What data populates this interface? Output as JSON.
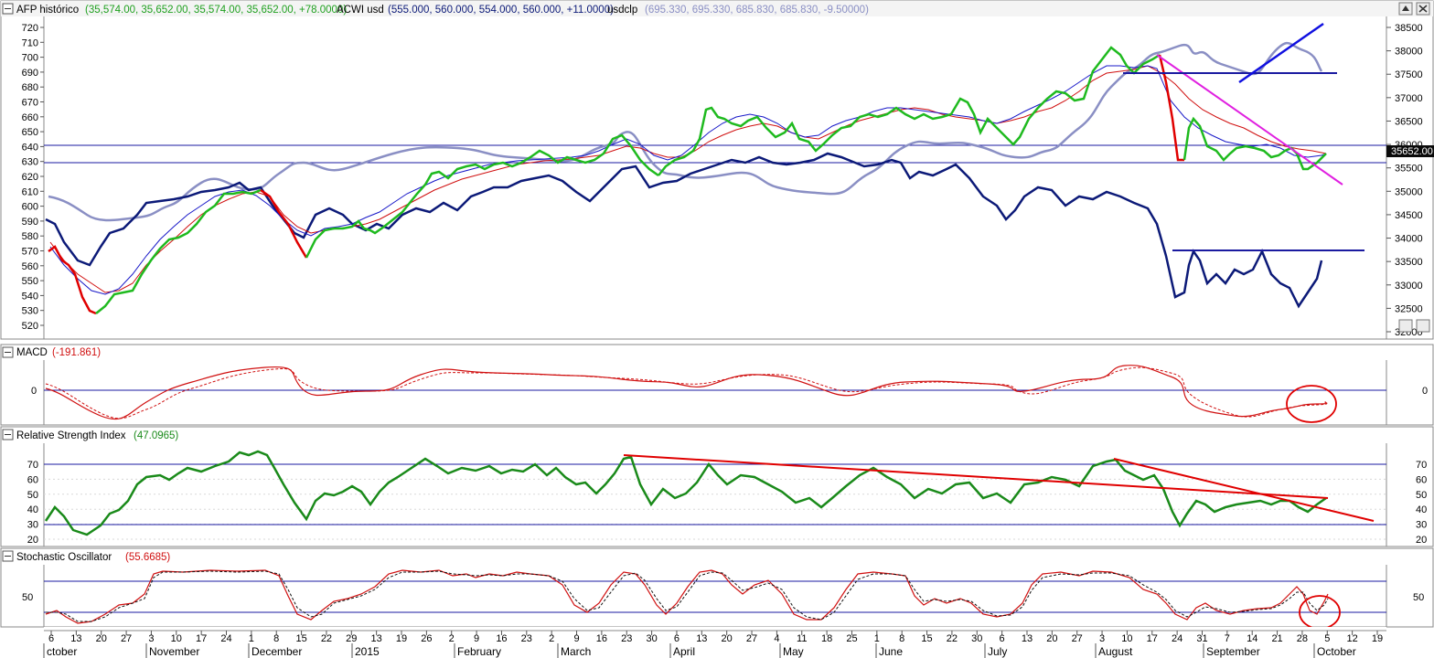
{
  "panes": {
    "price": {
      "title_main": "AFP histórico",
      "title_main_vals": "(35,574.00, 35,652.00, 35,574.00, 35,652.00, +78.0000)",
      "title_acwi": "ACWI usd",
      "title_acwi_vals": "(555.000, 560.000, 554.000, 560.000, +11.0000)",
      "title_usdclp": "usdclp",
      "title_usdclp_vals": "(695.330, 695.330, 685.830, 685.830, -9.50000)",
      "left_ticks": [
        "720",
        "710",
        "700",
        "690",
        "680",
        "670",
        "660",
        "650",
        "640",
        "630",
        "620",
        "610",
        "600",
        "590",
        "580",
        "570",
        "560",
        "550",
        "540",
        "530",
        "520"
      ],
      "right_ticks": [
        "38500",
        "38000",
        "37500",
        "37000",
        "36500",
        "36000",
        "35500",
        "35000",
        "34500",
        "34000",
        "33500",
        "33000",
        "32500",
        "32000"
      ],
      "last_value_label": "35652.00"
    },
    "macd": {
      "title": "MACD",
      "value": "(-191.861)",
      "zero_label": "0"
    },
    "rsi": {
      "title": "Relative Strength Index",
      "value": "(47.0965)",
      "ticks": [
        "70",
        "60",
        "50",
        "40",
        "30",
        "20"
      ]
    },
    "stoch": {
      "title": "Stochastic Oscillator",
      "value": "(55.6685)",
      "ticks": [
        "50"
      ]
    }
  },
  "x_axis": {
    "day_ticks": [
      "6",
      "13",
      "20",
      "27",
      "3",
      "10",
      "17",
      "24",
      "1",
      "8",
      "15",
      "22",
      "29",
      "13",
      "19",
      "26",
      "2",
      "9",
      "16",
      "23",
      "2",
      "9",
      "16",
      "23",
      "30",
      "6",
      "13",
      "20",
      "27",
      "4",
      "11",
      "18",
      "25",
      "1",
      "8",
      "15",
      "22",
      "30",
      "6",
      "13",
      "20",
      "27",
      "3",
      "10",
      "17",
      "24",
      "31",
      "7",
      "14",
      "21",
      "28",
      "5",
      "12",
      "19"
    ],
    "month_labels": [
      "ctober",
      "November",
      "December",
      "2015",
      "February",
      "March",
      "April",
      "May",
      "June",
      "July",
      "August",
      "September",
      "October"
    ]
  },
  "colors": {
    "afp_up": "#1fba1f",
    "afp_down": "#e00000",
    "acwi": "#0c1a78",
    "usdclp": "#8a8fc4",
    "ma_blue": "#1818c8",
    "ma_red": "#d01010",
    "trend_magenta": "#e020e0",
    "hline": "#1a1aa0",
    "trend_blue": "#1010e0",
    "rsi_line": "#1a8a1a"
  }
}
